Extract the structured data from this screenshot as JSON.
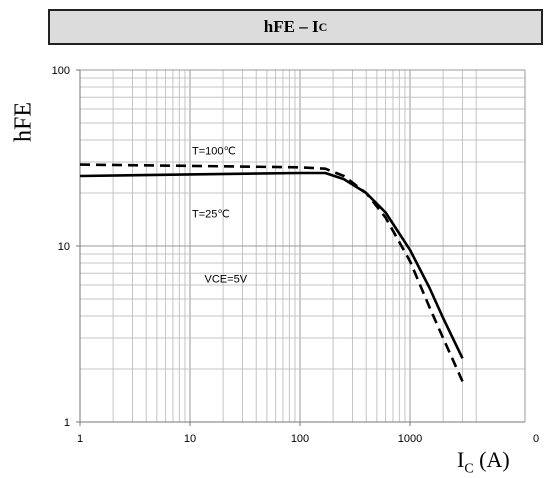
{
  "title": {
    "main": "hFE – I",
    "sub": "C"
  },
  "chart_data": {
    "type": "line",
    "xscale": "log",
    "yscale": "log",
    "xlim": [
      1,
      4000
    ],
    "ylim": [
      1,
      100
    ],
    "grid": true,
    "xlabel": {
      "main": "I",
      "sub": "C",
      "unit": " (A)"
    },
    "ylabel": "hFE",
    "x_ticks": [
      {
        "value": 1,
        "label": "1"
      },
      {
        "value": 10,
        "label": "10"
      },
      {
        "value": 100,
        "label": "100"
      },
      {
        "value": 1000,
        "label": "1000"
      }
    ],
    "x_tick_extra": "0",
    "y_ticks": [
      {
        "value": 1,
        "label": "1"
      },
      {
        "value": 10,
        "label": "10"
      },
      {
        "value": 100,
        "label": "100"
      }
    ],
    "series": [
      {
        "name": "T=100℃",
        "style": "solid",
        "color": "#000000",
        "x": [
          1,
          10,
          100,
          170,
          250,
          400,
          600,
          1000,
          1500,
          2000,
          3000
        ],
        "y": [
          25,
          25.5,
          26,
          26,
          24,
          20,
          15.5,
          9.5,
          5.8,
          3.9,
          2.3
        ]
      },
      {
        "name": "T=25℃",
        "style": "dashed",
        "color": "#000000",
        "x": [
          1,
          10,
          100,
          170,
          250,
          400,
          600,
          1000,
          1500,
          2000,
          3000
        ],
        "y": [
          29,
          28.5,
          28,
          27.5,
          25,
          20,
          14.5,
          8.2,
          4.5,
          3.0,
          1.7
        ]
      }
    ],
    "annotations": [
      {
        "text": "T=100℃",
        "x": 10,
        "y": 33
      },
      {
        "text": "T=25℃",
        "x": 10,
        "y": 14.5
      },
      {
        "text": "VCE=5V",
        "x": 13,
        "y": 6.2
      }
    ]
  }
}
